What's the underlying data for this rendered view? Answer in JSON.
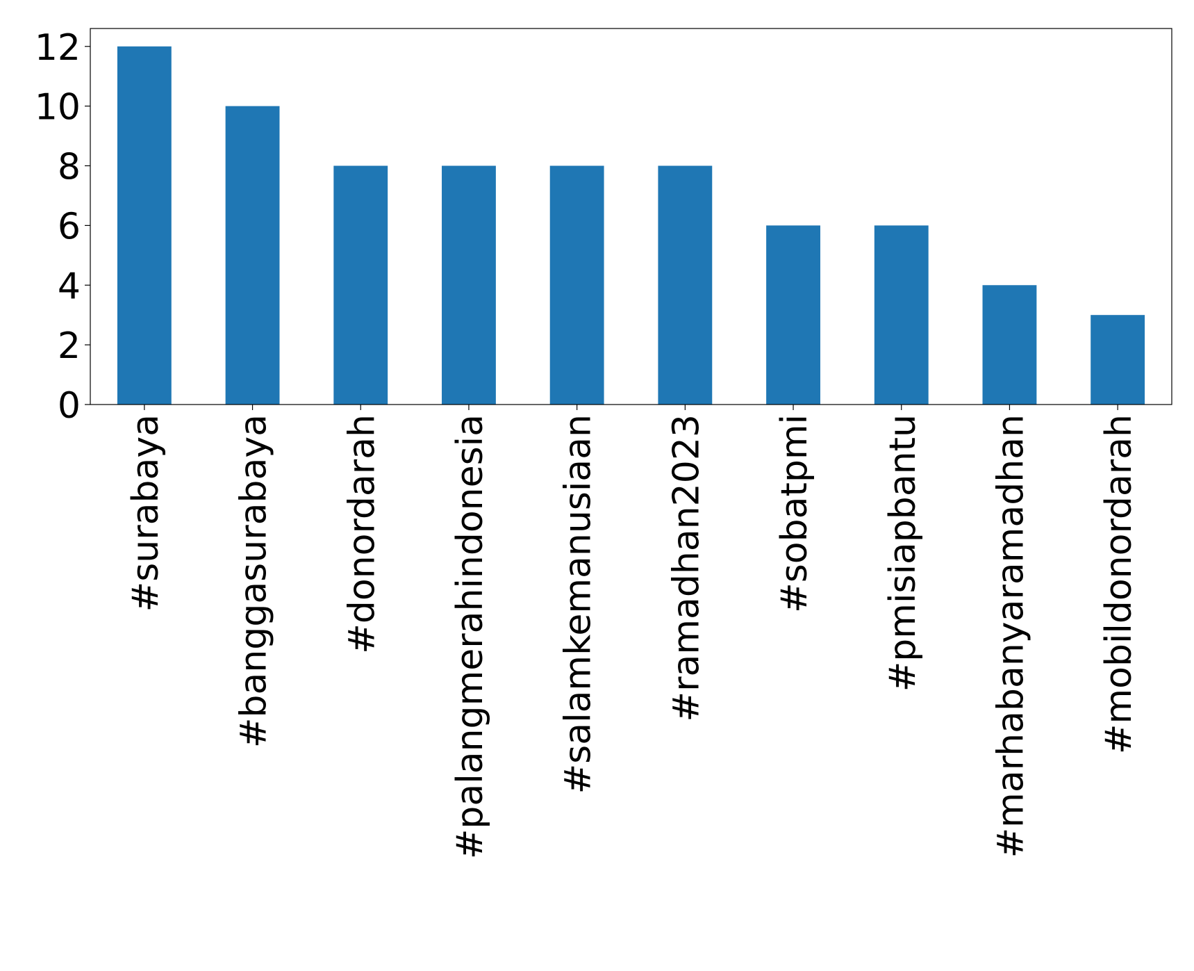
{
  "chart_data": {
    "type": "bar",
    "categories": [
      "#surabaya",
      "#banggasurabaya",
      "#donordarah",
      "#palangmerahindonesia",
      "#salamkemanusiaan",
      "#ramadhan2023",
      "#sobatpmi",
      "#pmisiapbantu",
      "#marhabanyaramadhan",
      "#mobildonordarah"
    ],
    "values": [
      12,
      10,
      8,
      8,
      8,
      8,
      6,
      6,
      4,
      3
    ],
    "color": "#1f77b4",
    "ylim": [
      0,
      12.6
    ],
    "yticks": [
      0,
      2,
      4,
      6,
      8,
      10,
      12
    ],
    "grid": false
  }
}
